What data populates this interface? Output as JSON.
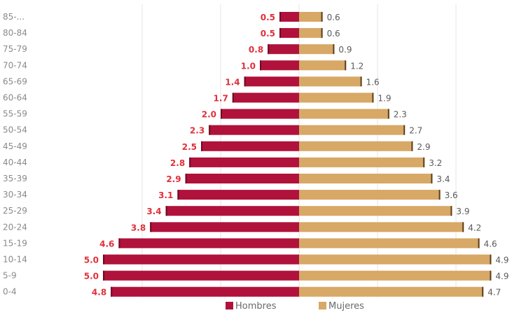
{
  "chart_data": {
    "type": "bar",
    "orientation": "horizontal",
    "population_pyramid": true,
    "categories": [
      "85-...",
      "80-84",
      "75-79",
      "70-74",
      "65-69",
      "60-64",
      "55-59",
      "50-54",
      "45-49",
      "40-44",
      "35-39",
      "30-34",
      "25-29",
      "20-24",
      "15-19",
      "10-14",
      "5-9",
      "0-4"
    ],
    "series": [
      {
        "name": "Hombres",
        "color": "#b0123b",
        "values": [
          0.5,
          0.5,
          0.8,
          1.0,
          1.4,
          1.7,
          2.0,
          2.3,
          2.5,
          2.8,
          2.9,
          3.1,
          3.4,
          3.8,
          4.6,
          5.0,
          5.0,
          4.8
        ],
        "labels": [
          "0.5",
          "0.5",
          "0.8",
          "1.0",
          "1.4",
          "1.7",
          "2.0",
          "2.3",
          "2.5",
          "2.8",
          "2.9",
          "3.1",
          "3.4",
          "3.8",
          "4.6",
          "5.0",
          "5.0",
          "4.8"
        ]
      },
      {
        "name": "Mujeres",
        "color": "#d7a866",
        "values": [
          0.6,
          0.6,
          0.9,
          1.2,
          1.6,
          1.9,
          2.3,
          2.7,
          2.9,
          3.2,
          3.4,
          3.6,
          3.9,
          4.2,
          4.6,
          4.9,
          4.9,
          4.7
        ],
        "labels": [
          "0.6",
          "0.6",
          "0.9",
          "1.2",
          "1.6",
          "1.9",
          "2.3",
          "2.7",
          "2.9",
          "3.2",
          "3.4",
          "3.6",
          "3.9",
          "4.2",
          "4.6",
          "4.9",
          "4.9",
          "4.7"
        ]
      }
    ],
    "xlim": [
      -5.2,
      5.2
    ],
    "grid": true,
    "legend_position": "bottom",
    "title": "",
    "xlabel": "",
    "ylabel": ""
  }
}
